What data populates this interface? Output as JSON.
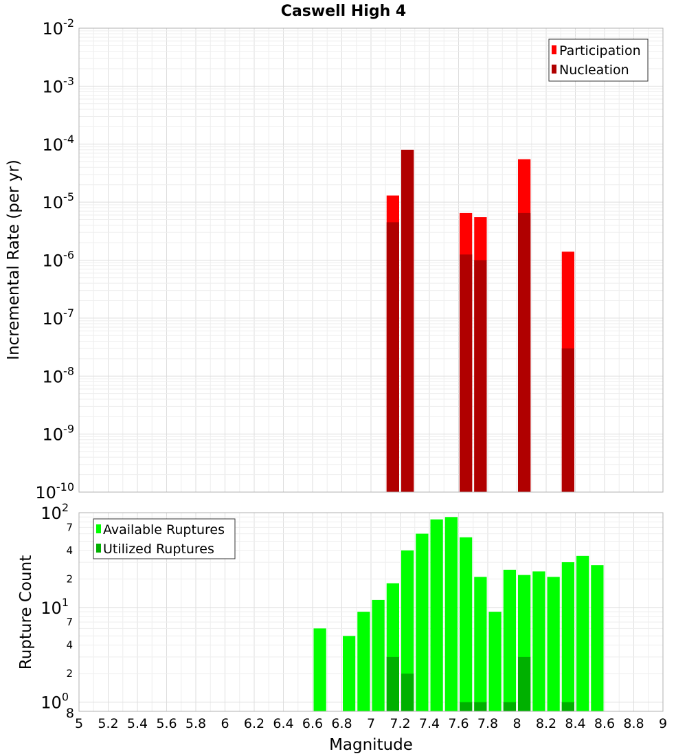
{
  "chart_data": [
    {
      "type": "bar",
      "title": "Caswell High 4",
      "xlabel": "",
      "ylabel": "Incremental Rate (per yr)",
      "yscale": "log",
      "ylim": [
        1e-10,
        0.01
      ],
      "xlim": [
        5,
        9
      ],
      "bar_width": 0.1,
      "y_ticks": [
        {
          "base": "10",
          "exp": "-10"
        },
        {
          "base": "10",
          "exp": "-9"
        },
        {
          "base": "10",
          "exp": "-8"
        },
        {
          "base": "10",
          "exp": "-7"
        },
        {
          "base": "10",
          "exp": "-6"
        },
        {
          "base": "10",
          "exp": "-5"
        },
        {
          "base": "10",
          "exp": "-4"
        },
        {
          "base": "10",
          "exp": "-3"
        },
        {
          "base": "10",
          "exp": "-2"
        }
      ],
      "legend_position": "top-right",
      "series": [
        {
          "name": "Participation",
          "color": "#ff0000",
          "x": [
            7.15,
            7.25,
            7.65,
            7.75,
            8.05,
            8.35
          ],
          "values": [
            1.3e-05,
            8e-05,
            6.5e-06,
            5.5e-06,
            5.5e-05,
            1.4e-06
          ]
        },
        {
          "name": "Nucleation",
          "color": "#b00000",
          "x": [
            7.15,
            7.25,
            7.65,
            7.75,
            8.05,
            8.35
          ],
          "values": [
            4.5e-06,
            8e-05,
            1.25e-06,
            1e-06,
            6.5e-06,
            3e-08
          ]
        }
      ]
    },
    {
      "type": "bar",
      "title": "",
      "xlabel": "Magnitude",
      "ylabel": "Rupture Count",
      "yscale": "log",
      "ylim": [
        0.8,
        100
      ],
      "xlim": [
        5,
        9
      ],
      "bar_width": 0.1,
      "x_ticks": [
        "5",
        "5.2",
        "5.4",
        "5.6",
        "5.8",
        "6",
        "6.2",
        "6.4",
        "6.6",
        "6.8",
        "7",
        "7.2",
        "7.4",
        "7.6",
        "7.8",
        "8",
        "8.2",
        "8.4",
        "8.6",
        "8.8",
        "9"
      ],
      "y_major_ticks": [
        {
          "value": 1,
          "base": "10",
          "exp": "0"
        },
        {
          "value": 10,
          "base": "10",
          "exp": "1"
        },
        {
          "value": 100,
          "base": "10",
          "exp": "2"
        }
      ],
      "y_minor_labels": [
        {
          "value": 0.8,
          "label": "8"
        },
        {
          "value": 2,
          "label": "2"
        },
        {
          "value": 4,
          "label": "4"
        },
        {
          "value": 7,
          "label": "7"
        },
        {
          "value": 20,
          "label": "2"
        },
        {
          "value": 40,
          "label": "4"
        },
        {
          "value": 70,
          "label": "7"
        }
      ],
      "legend_position": "top-left",
      "series": [
        {
          "name": "Available Ruptures",
          "color": "#00ff00",
          "x": [
            6.65,
            6.85,
            6.95,
            7.05,
            7.15,
            7.25,
            7.35,
            7.45,
            7.55,
            7.65,
            7.75,
            7.85,
            7.95,
            8.05,
            8.15,
            8.25,
            8.35,
            8.45,
            8.55
          ],
          "values": [
            6,
            5,
            9,
            12,
            18,
            40,
            60,
            85,
            90,
            55,
            21,
            9,
            25,
            22,
            24,
            21,
            30,
            35,
            28
          ]
        },
        {
          "name": "Utilized Ruptures",
          "color": "#00b000",
          "x": [
            7.15,
            7.25,
            7.65,
            7.75,
            7.95,
            8.05,
            8.35
          ],
          "values": [
            3,
            2,
            1,
            1,
            1,
            3,
            1
          ]
        }
      ]
    }
  ]
}
